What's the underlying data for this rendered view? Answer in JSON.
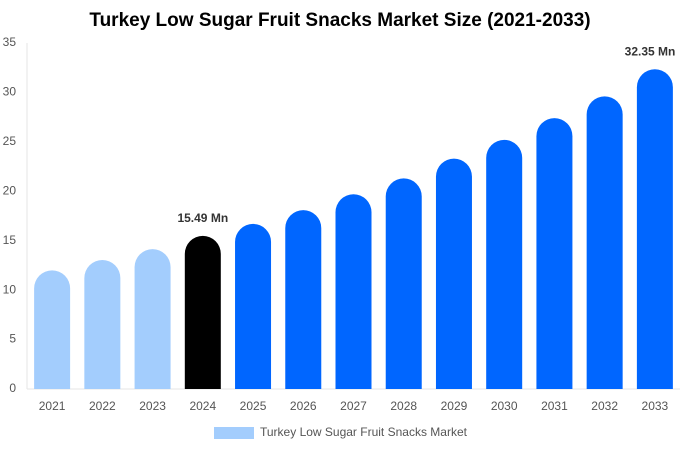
{
  "chart_data": {
    "type": "bar",
    "title": "Turkey Low Sugar Fruit Snacks Market Size (2021-2033)",
    "categories": [
      "2021",
      "2022",
      "2023",
      "2024",
      "2025",
      "2026",
      "2027",
      "2028",
      "2029",
      "2030",
      "2031",
      "2032",
      "2033"
    ],
    "series": [
      {
        "name": "Turkey Low Sugar Fruit Snacks Market",
        "color": "#a3cdfd",
        "values": [
          12.0,
          13.05,
          14.15,
          15.49,
          16.7,
          18.1,
          19.7,
          21.3,
          23.3,
          25.2,
          27.4,
          29.6,
          32.35
        ],
        "value_labels": [
          null,
          null,
          null,
          "15.49 Mn",
          null,
          null,
          null,
          null,
          null,
          null,
          null,
          null,
          "32.35 Mn"
        ],
        "colors": [
          "#a3cdfd",
          "#a3cdfd",
          "#a3cdfd",
          "#000000",
          "#0066ff",
          "#0066ff",
          "#0066ff",
          "#0066ff",
          "#0066ff",
          "#0066ff",
          "#0066ff",
          "#0066ff",
          "#0066ff"
        ]
      }
    ],
    "ylim": [
      0,
      35
    ],
    "yticks": [
      0,
      5,
      10,
      15,
      20,
      25,
      30,
      35
    ],
    "grid": false
  }
}
